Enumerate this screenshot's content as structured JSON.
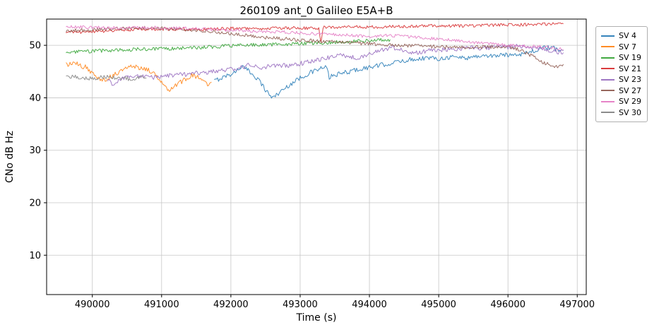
{
  "chart_data": {
    "type": "line",
    "title": "260109 ant_0 Galileo E5A+B",
    "xlabel": "Time (s)",
    "ylabel": "CNo dB Hz",
    "xlim": [
      489340,
      497130
    ],
    "ylim": [
      2.5,
      55
    ],
    "x_ticks": [
      490000,
      491000,
      492000,
      493000,
      494000,
      495000,
      496000,
      497000
    ],
    "y_ticks": [
      10,
      20,
      30,
      40,
      50
    ],
    "grid": true,
    "grid_color": "#c6c6c6",
    "alpha": 0.85,
    "legend_position": "outside-right",
    "series": [
      {
        "name": "SV 4",
        "color": "#1f77b4",
        "jitter": 0.45,
        "points": [
          [
            491760,
            43.2
          ],
          [
            491900,
            44.0
          ],
          [
            492050,
            44.8
          ],
          [
            492150,
            46.0
          ],
          [
            492250,
            45.2
          ],
          [
            492400,
            43.5
          ],
          [
            492500,
            41.5
          ],
          [
            492600,
            40.0
          ],
          [
            492700,
            41.0
          ],
          [
            492850,
            42.5
          ],
          [
            493000,
            43.8
          ],
          [
            493150,
            44.8
          ],
          [
            493300,
            45.6
          ],
          [
            493380,
            45.8
          ],
          [
            493420,
            43.9
          ],
          [
            493500,
            44.3
          ],
          [
            493650,
            44.8
          ],
          [
            493800,
            45.3
          ],
          [
            494000,
            45.8
          ],
          [
            494200,
            46.3
          ],
          [
            494400,
            46.8
          ],
          [
            494600,
            47.3
          ],
          [
            494800,
            47.6
          ],
          [
            495000,
            47.5
          ],
          [
            495200,
            47.8
          ],
          [
            495400,
            47.6
          ],
          [
            495600,
            48.0
          ],
          [
            495800,
            48.0
          ],
          [
            496000,
            48.2
          ],
          [
            496200,
            48.4
          ],
          [
            496400,
            49.0
          ],
          [
            496550,
            49.6
          ],
          [
            496700,
            49.3
          ],
          [
            496800,
            49.0
          ]
        ]
      },
      {
        "name": "SV 7",
        "color": "#ff7f0e",
        "jitter": 0.5,
        "points": [
          [
            489620,
            46.3
          ],
          [
            489750,
            46.5
          ],
          [
            489900,
            45.8
          ],
          [
            490000,
            44.6
          ],
          [
            490100,
            43.8
          ],
          [
            490200,
            43.4
          ],
          [
            490300,
            44.3
          ],
          [
            490450,
            45.5
          ],
          [
            490600,
            46.0
          ],
          [
            490750,
            45.6
          ],
          [
            490900,
            44.6
          ],
          [
            491000,
            43.2
          ],
          [
            491100,
            41.6
          ],
          [
            491200,
            42.3
          ],
          [
            491350,
            43.6
          ],
          [
            491450,
            44.3
          ],
          [
            491550,
            43.6
          ],
          [
            491650,
            42.6
          ],
          [
            491720,
            43.0
          ]
        ]
      },
      {
        "name": "SV 19",
        "color": "#2ca02c",
        "jitter": 0.35,
        "points": [
          [
            489620,
            48.6
          ],
          [
            490000,
            48.9
          ],
          [
            490400,
            49.1
          ],
          [
            490800,
            49.3
          ],
          [
            491200,
            49.4
          ],
          [
            491600,
            49.6
          ],
          [
            492000,
            49.9
          ],
          [
            492400,
            50.1
          ],
          [
            492800,
            50.2
          ],
          [
            493200,
            50.4
          ],
          [
            493600,
            50.7
          ],
          [
            494000,
            50.9
          ],
          [
            494300,
            51.1
          ]
        ]
      },
      {
        "name": "SV 21",
        "color": "#d62728",
        "jitter": 0.3,
        "points": [
          [
            489620,
            52.4
          ],
          [
            490000,
            52.6
          ],
          [
            490400,
            52.9
          ],
          [
            490800,
            53.1
          ],
          [
            491200,
            53.1
          ],
          [
            491600,
            53.0
          ],
          [
            492000,
            53.2
          ],
          [
            492400,
            53.2
          ],
          [
            492800,
            53.3
          ],
          [
            493270,
            53.3
          ],
          [
            493300,
            50.4
          ],
          [
            493330,
            53.4
          ],
          [
            493700,
            53.5
          ],
          [
            494100,
            53.5
          ],
          [
            494500,
            53.6
          ],
          [
            494900,
            53.7
          ],
          [
            495300,
            53.7
          ],
          [
            495700,
            53.8
          ],
          [
            496100,
            53.9
          ],
          [
            496500,
            54.0
          ],
          [
            496800,
            54.1
          ]
        ]
      },
      {
        "name": "SV 23",
        "color": "#9467bd",
        "jitter": 0.45,
        "points": [
          [
            490220,
            43.6
          ],
          [
            490300,
            42.0
          ],
          [
            490380,
            43.3
          ],
          [
            490500,
            44.0
          ],
          [
            490700,
            44.2
          ],
          [
            490900,
            43.9
          ],
          [
            491100,
            44.2
          ],
          [
            491300,
            44.4
          ],
          [
            491500,
            44.7
          ],
          [
            491700,
            44.9
          ],
          [
            491900,
            45.2
          ],
          [
            492100,
            45.6
          ],
          [
            492250,
            46.2
          ],
          [
            492400,
            45.8
          ],
          [
            492550,
            46.0
          ],
          [
            492700,
            46.2
          ],
          [
            492850,
            46.0
          ],
          [
            493000,
            46.5
          ],
          [
            493200,
            47.0
          ],
          [
            493400,
            47.6
          ],
          [
            493550,
            48.3
          ],
          [
            493700,
            47.8
          ],
          [
            493850,
            47.6
          ],
          [
            494000,
            48.4
          ],
          [
            494200,
            49.2
          ],
          [
            494350,
            49.6
          ],
          [
            494500,
            48.9
          ],
          [
            494650,
            48.6
          ],
          [
            494800,
            48.9
          ],
          [
            495000,
            49.1
          ],
          [
            495200,
            49.3
          ],
          [
            495400,
            49.5
          ],
          [
            495600,
            49.4
          ],
          [
            495800,
            49.6
          ],
          [
            496000,
            49.7
          ],
          [
            496200,
            49.8
          ],
          [
            496350,
            49.5
          ],
          [
            496500,
            49.4
          ],
          [
            496650,
            48.9
          ],
          [
            496800,
            48.6
          ]
        ]
      },
      {
        "name": "SV 27",
        "color": "#8c564b",
        "jitter": 0.35,
        "points": [
          [
            489620,
            52.7
          ],
          [
            490000,
            53.0
          ],
          [
            490400,
            53.2
          ],
          [
            490800,
            53.3
          ],
          [
            491200,
            53.1
          ],
          [
            491600,
            52.8
          ],
          [
            491900,
            52.4
          ],
          [
            492200,
            51.9
          ],
          [
            492500,
            51.5
          ],
          [
            492800,
            51.2
          ],
          [
            493100,
            50.9
          ],
          [
            493400,
            50.7
          ],
          [
            493700,
            50.5
          ],
          [
            494000,
            50.3
          ],
          [
            494300,
            50.1
          ],
          [
            494600,
            49.9
          ],
          [
            494900,
            49.8
          ],
          [
            495200,
            49.6
          ],
          [
            495500,
            49.6
          ],
          [
            495800,
            49.7
          ],
          [
            496000,
            49.8
          ],
          [
            496150,
            49.2
          ],
          [
            496300,
            48.3
          ],
          [
            496450,
            47.2
          ],
          [
            496600,
            46.2
          ],
          [
            496700,
            45.9
          ],
          [
            496800,
            46.4
          ]
        ]
      },
      {
        "name": "SV 29",
        "color": "#e377c2",
        "jitter": 0.3,
        "points": [
          [
            489620,
            53.6
          ],
          [
            490000,
            53.4
          ],
          [
            490400,
            53.3
          ],
          [
            490800,
            53.4
          ],
          [
            491200,
            53.3
          ],
          [
            491600,
            53.1
          ],
          [
            492000,
            52.9
          ],
          [
            492400,
            52.7
          ],
          [
            492800,
            52.5
          ],
          [
            493200,
            52.2
          ],
          [
            493600,
            52.0
          ],
          [
            494000,
            51.7
          ],
          [
            494300,
            51.9
          ],
          [
            494600,
            51.6
          ],
          [
            494900,
            51.3
          ],
          [
            495200,
            51.0
          ],
          [
            495500,
            50.6
          ],
          [
            495800,
            50.2
          ],
          [
            496100,
            49.9
          ],
          [
            496400,
            49.8
          ],
          [
            496600,
            49.6
          ],
          [
            496800,
            49.2
          ]
        ]
      },
      {
        "name": "SV 30",
        "color": "#7f7f7f",
        "jitter": 0.4,
        "points": [
          [
            489620,
            44.0
          ],
          [
            489800,
            43.9
          ],
          [
            490000,
            43.7
          ],
          [
            490200,
            44.0
          ],
          [
            490400,
            43.8
          ],
          [
            490550,
            43.6
          ],
          [
            490700,
            43.9
          ],
          [
            490780,
            43.7
          ]
        ]
      }
    ]
  }
}
